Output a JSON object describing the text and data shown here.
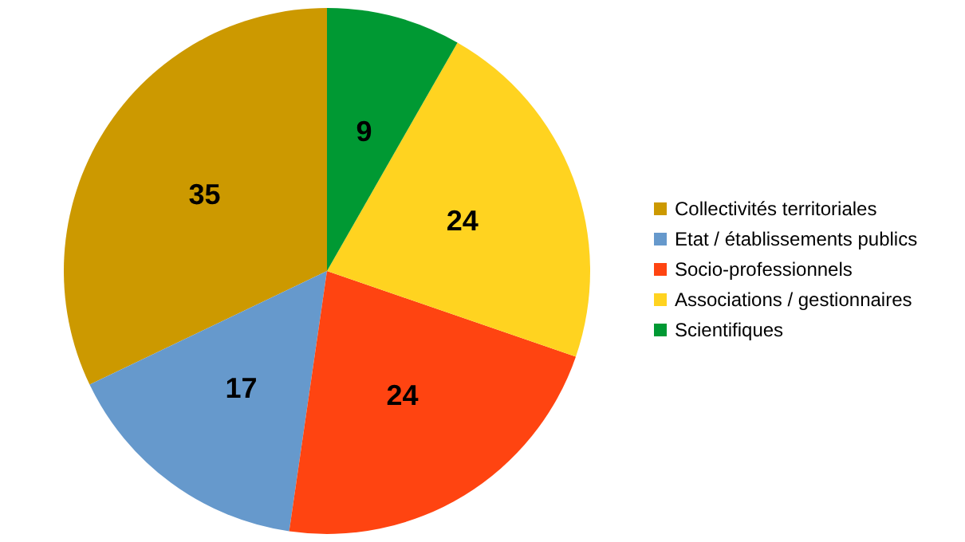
{
  "chart_data": {
    "type": "pie",
    "categories": [
      "Collectivités territoriales",
      "Etat / établissements publics",
      "Socio-professionnels",
      "Associations / gestionnaires",
      "Scientifiques"
    ],
    "values": [
      35,
      17,
      24,
      24,
      9
    ],
    "colors": [
      "#cc9900",
      "#6699cc",
      "#ff4411",
      "#ffd320",
      "#009933"
    ],
    "data_labels": true,
    "legend": "right"
  }
}
